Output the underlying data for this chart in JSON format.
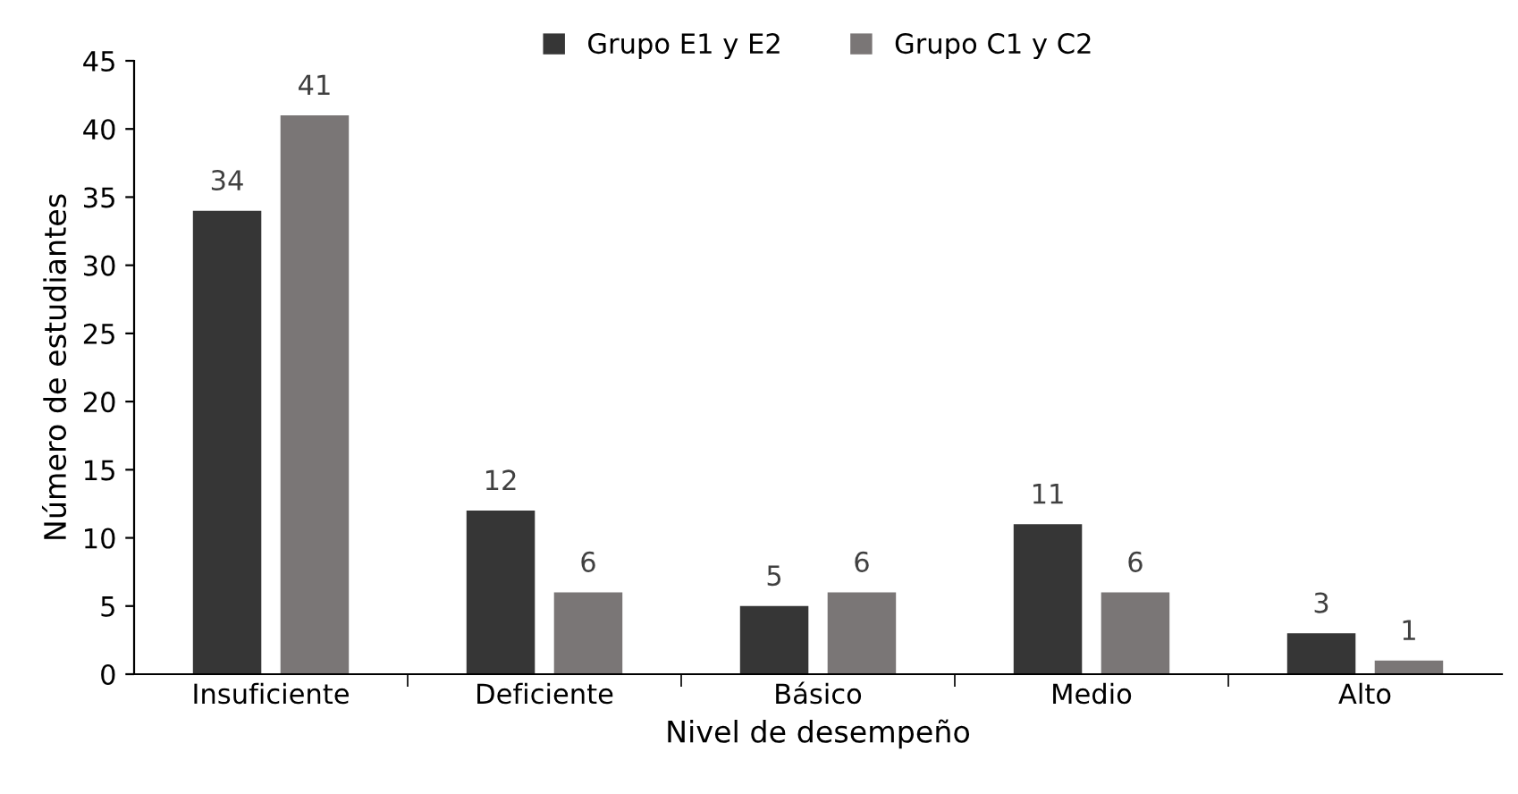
{
  "chart_data": {
    "type": "bar",
    "xlabel": "Nivel de desempeño",
    "ylabel": "Número de estudiantes",
    "categories": [
      "Insuficiente",
      "Deficiente",
      "Básico",
      "Medio",
      "Alto"
    ],
    "series": [
      {
        "name": "Grupo E1 y E2",
        "color": "#363636",
        "values": [
          34,
          12,
          5,
          11,
          3
        ]
      },
      {
        "name": "Grupo C1 y C2",
        "color": "#7a7676",
        "values": [
          41,
          6,
          6,
          6,
          1
        ]
      }
    ],
    "ylim": [
      0,
      45
    ],
    "yticks": [
      0,
      5,
      10,
      15,
      20,
      25,
      30,
      35,
      40,
      45
    ],
    "data_labels": true,
    "legend": "top",
    "grid": false
  }
}
